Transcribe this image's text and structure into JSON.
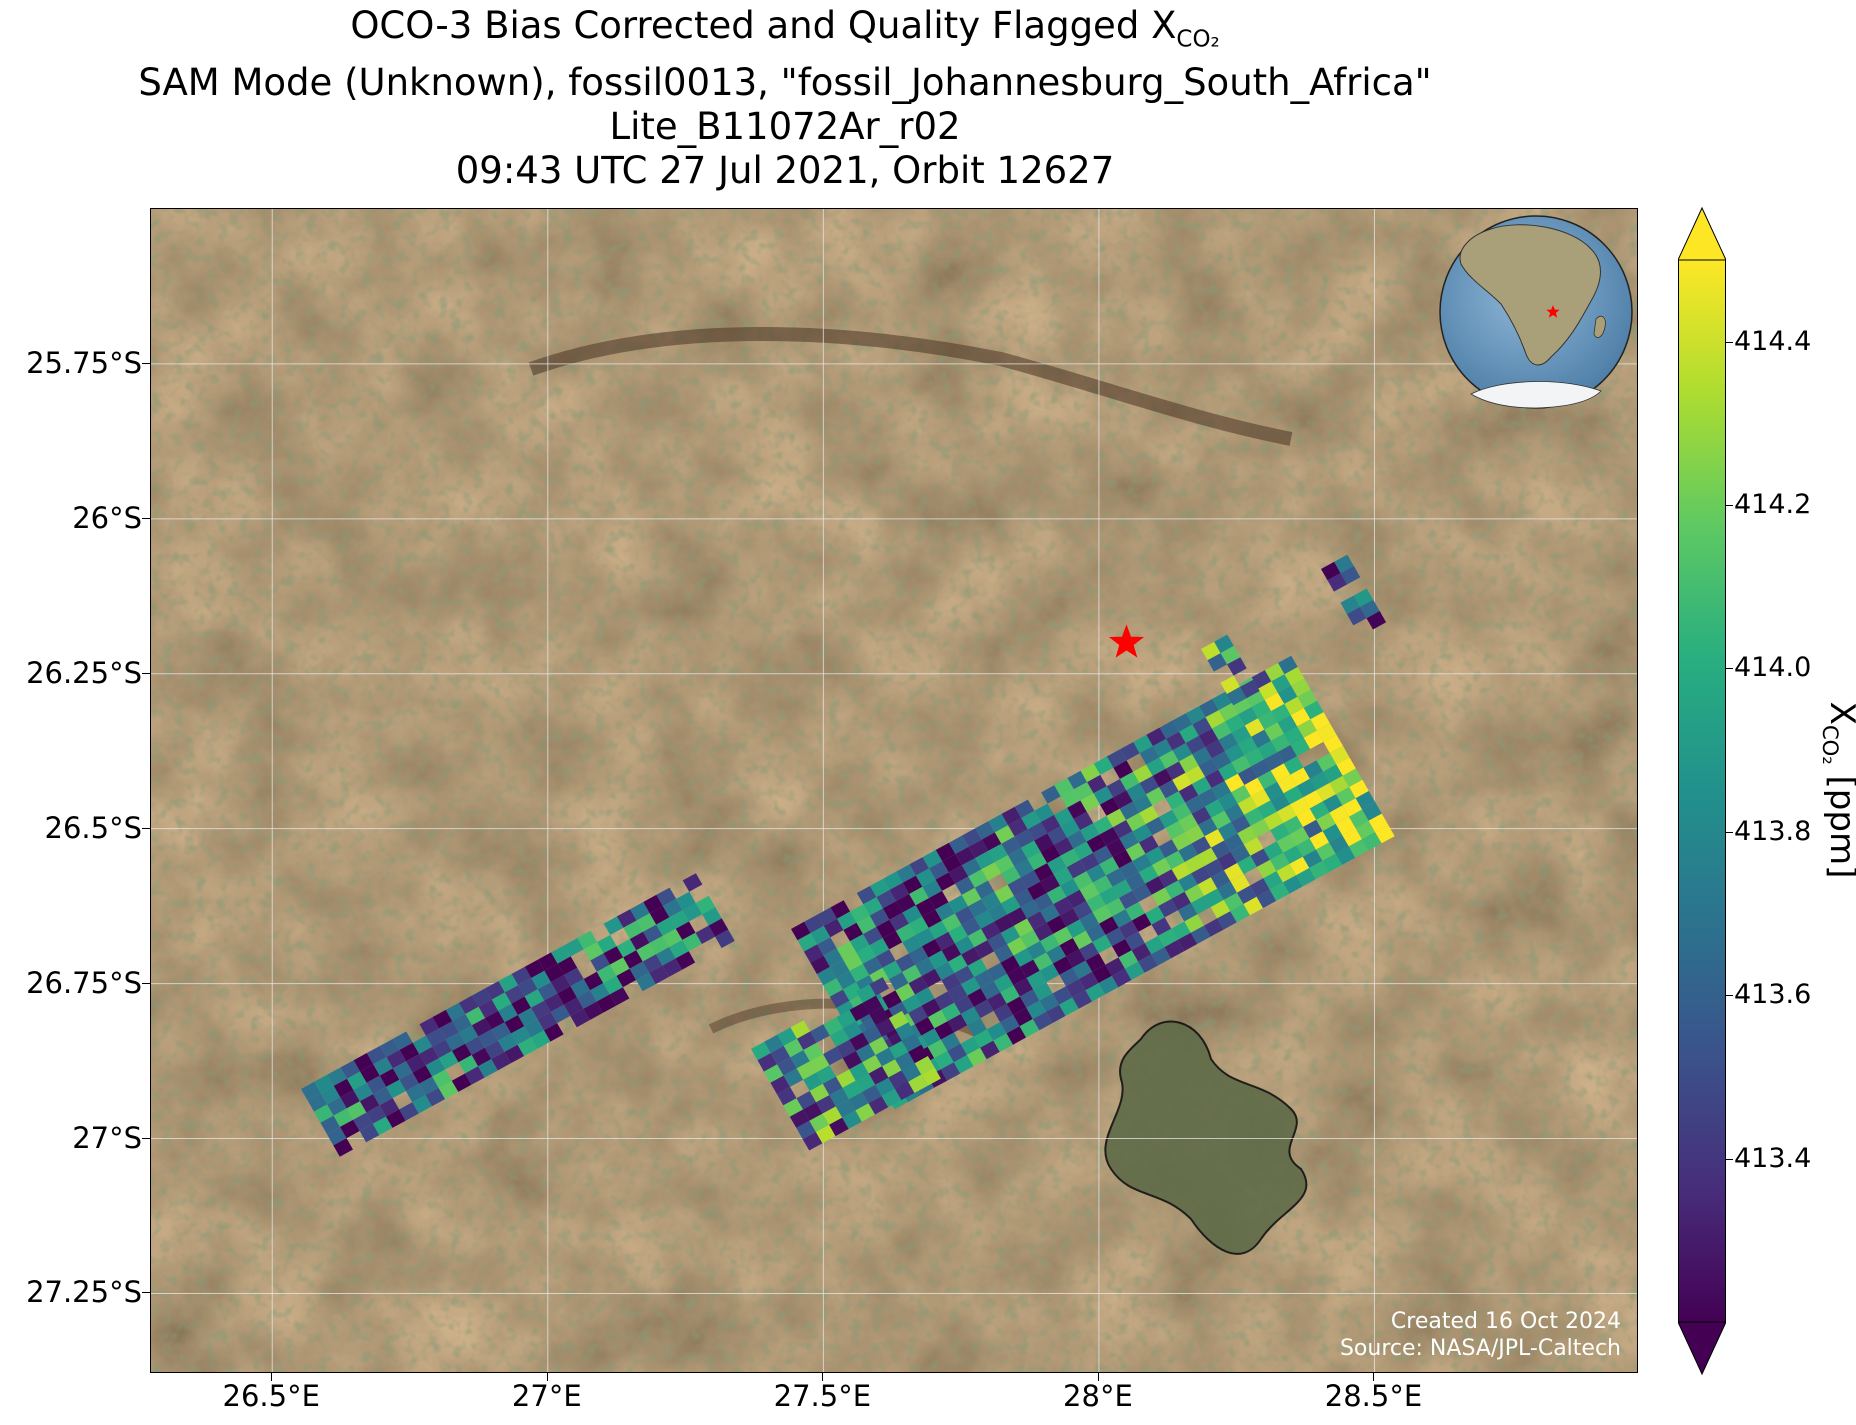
{
  "title": {
    "line1_prefix": "OCO-3 Bias Corrected and Quality Flagged X",
    "line1_sub": "CO₂",
    "line2": "SAM Mode (Unknown), fossil0013, \"fossil_Johannesburg_South_Africa\"",
    "line3": "Lite_B11072Ar_r02",
    "line4": "09:43 UTC 27 Jul 2021, Orbit 12627"
  },
  "map": {
    "x_range": [
      26.28,
      28.98
    ],
    "y_range": [
      -27.38,
      -25.5
    ],
    "x_ticks": [
      {
        "value": 26.5,
        "label": "26.5°E"
      },
      {
        "value": 27.0,
        "label": "27°E"
      },
      {
        "value": 27.5,
        "label": "27.5°E"
      },
      {
        "value": 28.0,
        "label": "28°E"
      },
      {
        "value": 28.5,
        "label": "28.5°E"
      }
    ],
    "y_ticks": [
      {
        "value": -25.75,
        "label": "25.75°S"
      },
      {
        "value": -26.0,
        "label": "26°S"
      },
      {
        "value": -26.25,
        "label": "26.25°S"
      },
      {
        "value": -26.5,
        "label": "26.5°S"
      },
      {
        "value": -26.75,
        "label": "26.75°S"
      },
      {
        "value": -27.0,
        "label": "27°S"
      },
      {
        "value": -27.25,
        "label": "27.25°S"
      }
    ],
    "gridlines": true,
    "basemap": "satellite imagery",
    "target_marker": {
      "lon": 28.05,
      "lat": -26.2,
      "shape": "star",
      "color": "#ff0000"
    },
    "inset_globe": {
      "placement": "top-right",
      "marker_color": "#ff0000"
    },
    "footprint_colormap": "viridis",
    "credits": {
      "line1": "Created 16 Oct 2024",
      "line2": "Source: NASA/JPL-Caltech"
    }
  },
  "colorbar": {
    "colormap": "viridis",
    "range": [
      413.2,
      414.5
    ],
    "extend": "both",
    "label_prefix": "X",
    "label_sub": "CO₂",
    "label_suffix": " [ppm]",
    "ticks": [
      {
        "value": 413.4,
        "label": "413.4"
      },
      {
        "value": 413.6,
        "label": "413.6"
      },
      {
        "value": 413.8,
        "label": "413.8"
      },
      {
        "value": 414.0,
        "label": "414.0"
      },
      {
        "value": 414.2,
        "label": "414.2"
      },
      {
        "value": 414.4,
        "label": "414.4"
      }
    ]
  }
}
